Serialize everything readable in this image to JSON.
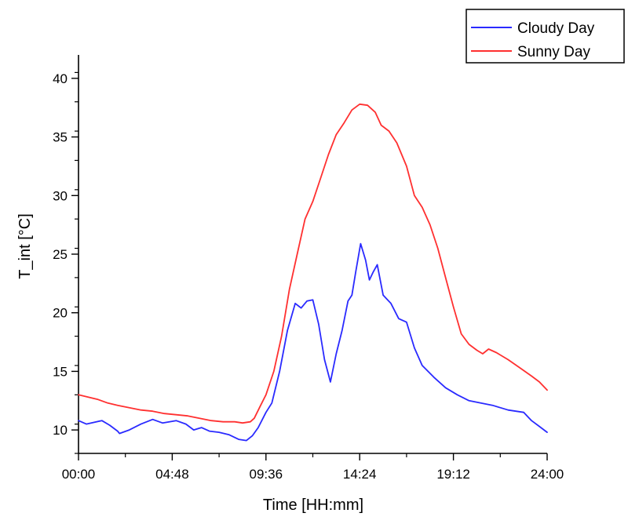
{
  "chart_data": {
    "type": "line",
    "xlabel": "Time [HH:mm]",
    "ylabel": "T_int [°C]",
    "xlim": [
      0,
      24
    ],
    "ylim": [
      8,
      42
    ],
    "x_ticks": [
      {
        "value": 0,
        "label": "00:00"
      },
      {
        "value": 4.8,
        "label": "04:48"
      },
      {
        "value": 9.6,
        "label": "09:36"
      },
      {
        "value": 14.4,
        "label": "14:24"
      },
      {
        "value": 19.2,
        "label": "19:12"
      },
      {
        "value": 24,
        "label": "24:00"
      }
    ],
    "y_ticks": [
      10,
      15,
      20,
      25,
      30,
      35,
      40
    ],
    "grid": false,
    "legend": "top-right, outside plot",
    "series": [
      {
        "name": "Cloudy Day",
        "color": "#2a2aff",
        "points": [
          [
            0,
            10.8
          ],
          [
            0.4,
            10.5
          ],
          [
            1.2,
            10.8
          ],
          [
            1.6,
            10.4
          ],
          [
            2.0,
            9.9
          ],
          [
            2.1,
            9.7
          ],
          [
            2.6,
            10.0
          ],
          [
            3.2,
            10.5
          ],
          [
            3.8,
            10.9
          ],
          [
            4.3,
            10.6
          ],
          [
            5.0,
            10.8
          ],
          [
            5.5,
            10.5
          ],
          [
            5.9,
            10.0
          ],
          [
            6.3,
            10.2
          ],
          [
            6.7,
            9.9
          ],
          [
            7.2,
            9.8
          ],
          [
            7.7,
            9.6
          ],
          [
            8.2,
            9.2
          ],
          [
            8.6,
            9.1
          ],
          [
            8.9,
            9.5
          ],
          [
            9.2,
            10.2
          ],
          [
            9.6,
            11.5
          ],
          [
            9.9,
            12.3
          ],
          [
            10.3,
            15.0
          ],
          [
            10.7,
            18.5
          ],
          [
            11.1,
            20.8
          ],
          [
            11.4,
            20.4
          ],
          [
            11.7,
            21.0
          ],
          [
            12.0,
            21.1
          ],
          [
            12.3,
            19.0
          ],
          [
            12.6,
            16.0
          ],
          [
            12.9,
            14.1
          ],
          [
            13.2,
            16.5
          ],
          [
            13.5,
            18.5
          ],
          [
            13.8,
            21.0
          ],
          [
            14.0,
            21.5
          ],
          [
            14.2,
            23.5
          ],
          [
            14.45,
            25.9
          ],
          [
            14.7,
            24.5
          ],
          [
            14.9,
            22.8
          ],
          [
            15.1,
            23.5
          ],
          [
            15.3,
            24.1
          ],
          [
            15.6,
            21.5
          ],
          [
            16.0,
            20.8
          ],
          [
            16.4,
            19.5
          ],
          [
            16.8,
            19.2
          ],
          [
            17.2,
            17.0
          ],
          [
            17.6,
            15.5
          ],
          [
            18.2,
            14.5
          ],
          [
            18.8,
            13.6
          ],
          [
            19.4,
            13.0
          ],
          [
            20.0,
            12.5
          ],
          [
            20.6,
            12.3
          ],
          [
            21.2,
            12.1
          ],
          [
            21.6,
            11.9
          ],
          [
            22.0,
            11.7
          ],
          [
            22.4,
            11.6
          ],
          [
            22.8,
            11.5
          ],
          [
            23.2,
            10.8
          ],
          [
            23.6,
            10.3
          ],
          [
            24.0,
            9.8
          ]
        ]
      },
      {
        "name": "Sunny Day",
        "color": "#ff3030",
        "points": [
          [
            0,
            13.0
          ],
          [
            0.5,
            12.8
          ],
          [
            1.0,
            12.6
          ],
          [
            1.5,
            12.3
          ],
          [
            2.0,
            12.1
          ],
          [
            2.6,
            11.9
          ],
          [
            3.2,
            11.7
          ],
          [
            3.8,
            11.6
          ],
          [
            4.4,
            11.4
          ],
          [
            5.0,
            11.3
          ],
          [
            5.6,
            11.2
          ],
          [
            6.2,
            11.0
          ],
          [
            6.8,
            10.8
          ],
          [
            7.4,
            10.7
          ],
          [
            8.0,
            10.7
          ],
          [
            8.4,
            10.6
          ],
          [
            8.8,
            10.7
          ],
          [
            9.0,
            11.0
          ],
          [
            9.3,
            12.0
          ],
          [
            9.6,
            13.0
          ],
          [
            10.0,
            15.0
          ],
          [
            10.4,
            18.0
          ],
          [
            10.8,
            22.0
          ],
          [
            11.2,
            25.0
          ],
          [
            11.6,
            28.0
          ],
          [
            12.0,
            29.5
          ],
          [
            12.4,
            31.5
          ],
          [
            12.8,
            33.5
          ],
          [
            13.2,
            35.2
          ],
          [
            13.6,
            36.2
          ],
          [
            14.0,
            37.3
          ],
          [
            14.4,
            37.8
          ],
          [
            14.8,
            37.7
          ],
          [
            15.2,
            37.1
          ],
          [
            15.5,
            36.0
          ],
          [
            15.9,
            35.5
          ],
          [
            16.3,
            34.5
          ],
          [
            16.8,
            32.5
          ],
          [
            17.2,
            30.0
          ],
          [
            17.6,
            29.0
          ],
          [
            18.0,
            27.5
          ],
          [
            18.4,
            25.5
          ],
          [
            18.8,
            23.0
          ],
          [
            19.2,
            20.5
          ],
          [
            19.6,
            18.2
          ],
          [
            20.0,
            17.3
          ],
          [
            20.4,
            16.8
          ],
          [
            20.7,
            16.5
          ],
          [
            21.0,
            16.9
          ],
          [
            21.4,
            16.6
          ],
          [
            22.0,
            16.0
          ],
          [
            22.6,
            15.3
          ],
          [
            23.2,
            14.6
          ],
          [
            23.6,
            14.1
          ],
          [
            24.0,
            13.4
          ]
        ]
      }
    ]
  }
}
